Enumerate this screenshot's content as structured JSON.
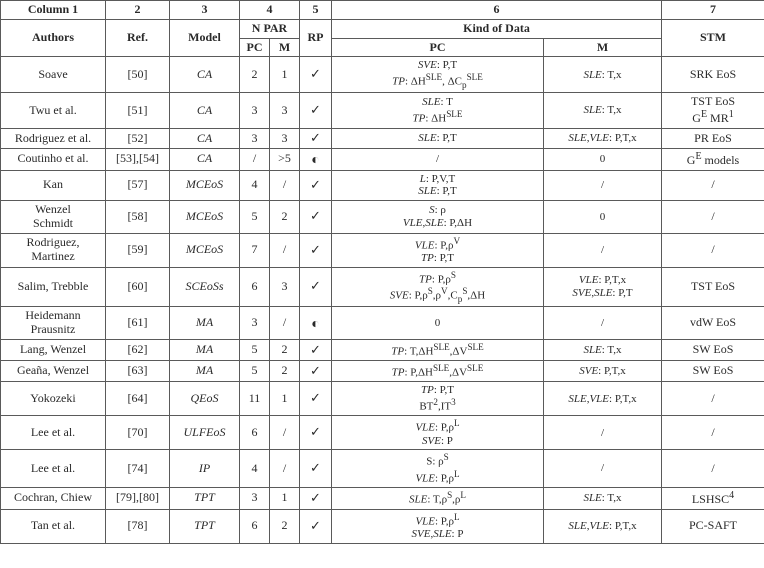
{
  "header": {
    "top": {
      "c1": "Column 1",
      "c2": "2",
      "c3": "3",
      "c4": "4",
      "c5": "5",
      "c6": "6",
      "c7": "7"
    },
    "second": {
      "c1": "Authors",
      "c2": "Ref.",
      "c3": "Model",
      "c4": "N PAR",
      "c5": "RP",
      "c6": "Kind of Data",
      "c7": "STM"
    },
    "third": {
      "c4a": "PC",
      "c4b": "M",
      "c6a": "PC",
      "c6b": "M"
    }
  },
  "glyphs": {
    "check": "✓",
    "half": "◐"
  },
  "rows": [
    {
      "authors": "Soave",
      "ref": "[50]",
      "model": "CA",
      "pc": "2",
      "m": "1",
      "rp": "check",
      "kind_pc": [
        "<i>SVE</i>: P,T",
        "<i>TP</i>: ΔH<sup>SLE</sup>, ΔC<sub>p</sub><sup>SLE</sup>"
      ],
      "kind_m": [
        "<i>SLE</i>: T,x"
      ],
      "stm": "SRK EoS"
    },
    {
      "authors": "Twu et al.",
      "ref": "[51]",
      "model": "CA",
      "pc": "3",
      "m": "3",
      "rp": "check",
      "kind_pc": [
        "<i>SLE</i>: T",
        "<i>TP</i>: ΔH<sup>SLE</sup>"
      ],
      "kind_m": [
        "<i>SLE</i>: T,x"
      ],
      "stm_lines": [
        "TST EoS",
        "G<sup>E</sup> MR<sup>1</sup>"
      ]
    },
    {
      "authors": "Rodriguez et al.",
      "ref": "[52]",
      "model": "CA",
      "pc": "3",
      "m": "3",
      "rp": "check",
      "kind_pc": [
        "<i>SLE</i>: P,T"
      ],
      "kind_m": [
        "<i>SLE</i>,<i>VLE</i>: P,T,x"
      ],
      "stm": "PR EoS"
    },
    {
      "authors": "Coutinho et al.",
      "ref": "[53],[54]",
      "model": "CA",
      "pc": "/",
      "m": ">5",
      "rp": "half",
      "kind_pc": [
        "/"
      ],
      "kind_m": [
        "0"
      ],
      "stm_lines": [
        "G<sup>E</sup> models"
      ]
    },
    {
      "authors": "Kan",
      "ref": "[57]",
      "model": "MCEoS",
      "pc": "4",
      "m": "/",
      "rp": "check",
      "kind_pc": [
        "<i>L</i>: P,V,T",
        "<i>SLE</i>: P,T"
      ],
      "kind_m": [
        "/"
      ],
      "stm": "/"
    },
    {
      "authors_lines": [
        "Wenzel",
        "Schmidt"
      ],
      "ref": "[58]",
      "model": "MCEoS",
      "pc": "5",
      "m": "2",
      "rp": "check",
      "kind_pc": [
        "<i>S</i>: ρ",
        "<i>VLE</i>,<i>SLE</i>: P,ΔH"
      ],
      "kind_m": [
        "0"
      ],
      "stm": "/"
    },
    {
      "authors_lines": [
        "Rodriguez,",
        "Martinez"
      ],
      "ref": "[59]",
      "model": "MCEoS",
      "pc": "7",
      "m": "/",
      "rp": "check",
      "kind_pc": [
        "<i>VLE</i>: P,ρ<sup>V</sup>",
        "<i>TP</i>: P,T"
      ],
      "kind_m": [
        "/"
      ],
      "stm": "/"
    },
    {
      "authors": "Salim, Trebble",
      "ref": "[60]",
      "model": "SCEoSs",
      "pc": "6",
      "m": "3",
      "rp": "check",
      "kind_pc": [
        "<i>TP</i>: P,ρ<sup>S</sup>",
        "<i>SVE</i>: P,ρ<sup>S</sup>,ρ<sup>V</sup>,C<sub>p</sub><sup>S</sup>,ΔH"
      ],
      "kind_m": [
        "<i>VLE</i>: P,T,x",
        "<i>SVE</i>,<i>SLE</i>: P,T"
      ],
      "stm": "TST EoS"
    },
    {
      "authors_lines": [
        "Heidemann",
        "Prausnitz"
      ],
      "ref": "[61]",
      "model": "MA",
      "pc": "3",
      "m": "/",
      "rp": "half",
      "kind_pc": [
        "0"
      ],
      "kind_m": [
        "/"
      ],
      "stm": "vdW EoS"
    },
    {
      "authors": "Lang, Wenzel",
      "ref": "[62]",
      "model": "MA",
      "pc": "5",
      "m": "2",
      "rp": "check",
      "kind_pc": [
        "<i>TP</i>: T,ΔH<sup>SLE</sup>,ΔV<sup>SLE</sup>"
      ],
      "kind_m": [
        "<i>SLE</i>: T,x"
      ],
      "stm": "SW EoS"
    },
    {
      "authors": "Geaña, Wenzel",
      "ref": "[63]",
      "model": "MA",
      "pc": "5",
      "m": "2",
      "rp": "check",
      "kind_pc": [
        "<i>TP</i>: P,ΔH<sup>SLE</sup>,ΔV<sup>SLE</sup>"
      ],
      "kind_m": [
        "<i>SVE</i>: P,T,x"
      ],
      "stm": "SW EoS"
    },
    {
      "authors": "Yokozeki",
      "ref": "[64]",
      "model": "QEoS",
      "pc": "11",
      "m": "1",
      "rp": "check",
      "kind_pc": [
        "<i>TP</i>: P,T",
        "BT<sup>2</sup>,IT<sup>3</sup>"
      ],
      "kind_m": [
        "<i>SLE</i>,<i>VLE</i>: P,T,x"
      ],
      "stm": "/"
    },
    {
      "authors": "Lee et al.",
      "ref": "[70]",
      "model": "ULFEoS",
      "pc": "6",
      "m": "/",
      "rp": "check",
      "kind_pc": [
        "<i>VLE</i>: P,ρ<sup>L</sup>",
        "<i>SVE</i>: P"
      ],
      "kind_m": [
        "/"
      ],
      "stm": "/"
    },
    {
      "authors": "Lee et al.",
      "ref": "[74]",
      "model": "IP",
      "pc": "4",
      "m": "/",
      "rp": "check",
      "kind_pc": [
        "S: ρ<sup>S</sup>",
        "<i>VLE</i>: P,ρ<sup>L</sup>"
      ],
      "kind_m": [
        "/"
      ],
      "stm": "/"
    },
    {
      "authors": "Cochran, Chiew",
      "ref": "[79],[80]",
      "model": "TPT",
      "pc": "3",
      "m": "1",
      "rp": "check",
      "kind_pc": [
        "<i>SLE</i>: T,ρ<sup>S</sup>,ρ<sup>L</sup>"
      ],
      "kind_m": [
        "<i>SLE</i>: T,x"
      ],
      "stm_lines": [
        "LSHSC<sup>4</sup>"
      ]
    },
    {
      "authors": "Tan et al.",
      "ref": "[78]",
      "model": "TPT",
      "pc": "6",
      "m": "2",
      "rp": "check",
      "kind_pc": [
        "<i>VLE</i>: P,ρ<sup>L</sup>",
        "<i>SVE</i>,<i>SLE</i>: P"
      ],
      "kind_m": [
        "<i>SLE</i>,<i>VLE</i>: P,T,x"
      ],
      "stm": "PC-SAFT"
    }
  ]
}
